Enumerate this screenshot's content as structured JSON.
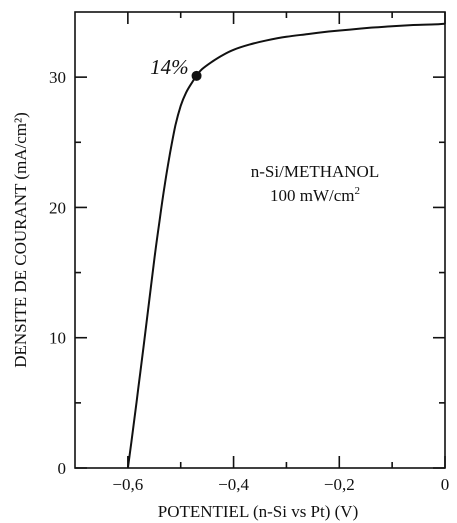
{
  "chart_data": {
    "type": "line",
    "xlabel": "POTENTIEL (n-Si vs Pt) (V)",
    "ylabel": "DENSITE DE COURANT  (mA/cm²)",
    "xlim": [
      -0.7,
      0.0
    ],
    "ylim": [
      0,
      35
    ],
    "x_ticks": [
      {
        "value": -0.6,
        "label": "−0,6"
      },
      {
        "value": -0.4,
        "label": "−0,4"
      },
      {
        "value": -0.2,
        "label": "−0,2"
      },
      {
        "value": 0.0,
        "label": "0"
      }
    ],
    "y_ticks": [
      {
        "value": 0,
        "label": "0"
      },
      {
        "value": 10,
        "label": "10"
      },
      {
        "value": 20,
        "label": "20"
      },
      {
        "value": 30,
        "label": "30"
      }
    ],
    "x_minor_ticks": [
      -0.5,
      -0.3,
      -0.1
    ],
    "y_minor_ticks": [
      5,
      15,
      25
    ],
    "grid": false,
    "series": [
      {
        "x": [
          -0.6,
          -0.59,
          -0.58,
          -0.57,
          -0.56,
          -0.55,
          -0.54,
          -0.53,
          -0.52,
          -0.51,
          -0.5,
          -0.49,
          -0.48,
          -0.47,
          -0.46,
          -0.44,
          -0.42,
          -0.4,
          -0.37,
          -0.34,
          -0.3,
          -0.26,
          -0.22,
          -0.18,
          -0.14,
          -0.1,
          -0.06,
          -0.02,
          0.0
        ],
        "y": [
          0,
          3.0,
          6.2,
          9.4,
          12.7,
          16.0,
          19.0,
          21.8,
          24.2,
          26.3,
          27.8,
          28.8,
          29.5,
          30.1,
          30.6,
          31.2,
          31.7,
          32.1,
          32.5,
          32.8,
          33.1,
          33.3,
          33.5,
          33.65,
          33.8,
          33.9,
          34.0,
          34.05,
          34.1
        ]
      }
    ],
    "marker_point": {
      "x": -0.47,
      "y": 30.1,
      "label": "14%"
    },
    "annotation": {
      "line1": "n-Si/METHANOL",
      "line2_value": "100 mW/cm",
      "line2_sup": "2"
    },
    "colors": {
      "line": "#111111",
      "axis": "#111111",
      "background": "#ffffff"
    }
  }
}
